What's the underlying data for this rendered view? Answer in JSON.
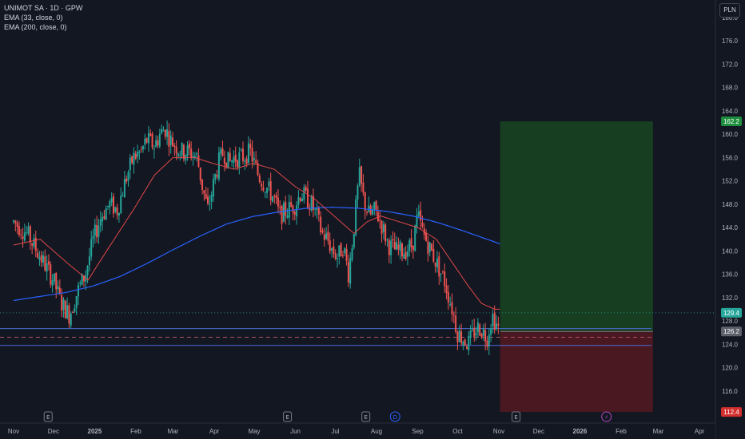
{
  "legend": {
    "symbol": "UNIMOT SA · 1D · GPW",
    "ema1": "EMA (33, close, 0)",
    "ema2": "EMA (200, close, 0)"
  },
  "currency": "PLN",
  "colors": {
    "background": "#131722",
    "up": "#26a69a",
    "down": "#ef5350",
    "ema33": "#e04848",
    "ema200": "#2962ff",
    "target_zone": "#1b5e20",
    "stop_zone": "#5c1a22",
    "horizontal_lines": "#4a6fd8"
  },
  "chart_data": {
    "type": "candlestick",
    "title": "UNIMOT SA · 1D · GPW",
    "xlabel": "",
    "ylabel": "",
    "ylim": [
      110.5,
      183.0
    ],
    "grid": false,
    "y_ticks": [
      116,
      120,
      124,
      128,
      132,
      136,
      140,
      144,
      148,
      152,
      156,
      160,
      164,
      168,
      172,
      176,
      180
    ],
    "x_ticks": [
      "Nov",
      "Dec",
      "2025",
      "Feb",
      "Mar",
      "Apr",
      "May",
      "Jun",
      "Jul",
      "Aug",
      "Sep",
      "Oct",
      "Nov",
      "Dec",
      "2026",
      "Feb",
      "Mar",
      "Apr"
    ],
    "x_tick_days": [
      0,
      30,
      61,
      92,
      120,
      151,
      181,
      212,
      242,
      273,
      304,
      334,
      365,
      395,
      426,
      457,
      485,
      516
    ],
    "candle_start_day": 0,
    "candle_count": 263,
    "price_path_days": [
      0,
      10,
      20,
      30,
      36,
      42,
      48,
      54,
      60,
      66,
      72,
      78,
      84,
      90,
      96,
      100,
      106,
      110,
      114,
      118,
      122,
      126,
      132,
      138,
      142,
      146,
      150,
      154,
      158,
      162,
      166,
      172,
      178,
      184,
      190,
      196,
      200,
      206,
      212,
      216,
      220,
      224,
      228,
      232,
      236,
      240,
      244,
      248,
      252,
      256,
      260,
      264,
      268,
      272,
      276,
      282,
      288,
      294,
      300,
      304,
      308,
      312,
      318,
      324,
      330,
      334,
      338,
      342,
      346,
      350,
      354,
      356,
      360,
      364,
      366
    ],
    "price_path_values": [
      145,
      143,
      139,
      135,
      131,
      129,
      133,
      136,
      142,
      146,
      148,
      147,
      152,
      156,
      157,
      159,
      158,
      160,
      161,
      159,
      158,
      157,
      157,
      156,
      151,
      147,
      151,
      155,
      157,
      155,
      156,
      156,
      157,
      153,
      151,
      149,
      146,
      147,
      148,
      150,
      149,
      148,
      146,
      143,
      142,
      140,
      139,
      141,
      136,
      144,
      153,
      148,
      146,
      147,
      145,
      141,
      140,
      140,
      141,
      146,
      143,
      141,
      138,
      135,
      130,
      126,
      125,
      124,
      126,
      127,
      126,
      125,
      129,
      127,
      126
    ],
    "ema33_days": [
      0,
      20,
      40,
      56,
      70,
      90,
      106,
      120,
      136,
      150,
      166,
      180,
      196,
      212,
      226,
      236,
      246,
      256,
      266,
      276,
      290,
      304,
      318,
      330,
      342,
      352,
      362,
      366
    ],
    "ema33_values": [
      141,
      142,
      138,
      135,
      140,
      147,
      153,
      156,
      156,
      155,
      154,
      155,
      154,
      151,
      149,
      147,
      145,
      143,
      145,
      146,
      145,
      144,
      142,
      138,
      134,
      131,
      130,
      130
    ],
    "ema200_days": [
      0,
      20,
      40,
      60,
      80,
      100,
      120,
      140,
      160,
      180,
      200,
      220,
      240,
      260,
      280,
      300,
      320,
      340,
      366
    ],
    "ema200_values": [
      131.5,
      132.2,
      132.9,
      134,
      135.6,
      137.8,
      140.2,
      142.5,
      144.6,
      145.9,
      146.7,
      147.3,
      147.5,
      147.3,
      146.8,
      146,
      144.8,
      143.3,
      141.2
    ],
    "horizontal_levels": [
      126.7,
      123.8
    ],
    "dashed_level": 125.2,
    "dotted_level": 129.4,
    "long_position": {
      "start_day": 366,
      "end_day": 481,
      "entry": 126.2,
      "target": 162.2,
      "stop": 112.4
    },
    "price_labels": {
      "target": "162.2",
      "current": "129.4",
      "entry": "126.2",
      "stop": "112.4"
    },
    "event_markers": [
      {
        "day": 26,
        "label": "E",
        "type": "earnings"
      },
      {
        "day": 206,
        "label": "E",
        "type": "earnings"
      },
      {
        "day": 265,
        "label": "E",
        "type": "earnings"
      },
      {
        "day": 287,
        "label": "D",
        "type": "dividend"
      },
      {
        "day": 378,
        "label": "E",
        "type": "earnings"
      },
      {
        "day": 446,
        "label": "⚡",
        "type": "event"
      }
    ]
  }
}
